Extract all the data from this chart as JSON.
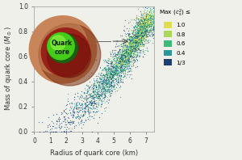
{
  "xlabel": "Radius of quark core (km)",
  "ylabel": "Mass of quark core ($M_\\odot$)",
  "xlim": [
    0,
    7.5
  ],
  "ylim": [
    0,
    1.0
  ],
  "xticks": [
    0,
    1,
    2,
    3,
    4,
    5,
    6,
    7
  ],
  "yticks": [
    0.0,
    0.2,
    0.4,
    0.6,
    0.8,
    1.0
  ],
  "legend_title": "Max $(c_s^2) \\leq$",
  "legend_labels": [
    "1.0",
    "0.8",
    "0.6",
    "0.4",
    "1/3"
  ],
  "legend_colors": [
    "#dede50",
    "#aad858",
    "#3dbb78",
    "#2a9898",
    "#1a3f72"
  ],
  "background_color": "#f0f0ea",
  "seed": 42,
  "n_points": 1200,
  "sphere_outer_color": "#c8855a",
  "sphere_shadow_color": "#7a3010",
  "sphere_mid_color": "#992218",
  "sphere_inner_dark": "#1a6010",
  "sphere_inner_bright": "#44cc18",
  "sphere_inner_highlight": "#88ee44"
}
